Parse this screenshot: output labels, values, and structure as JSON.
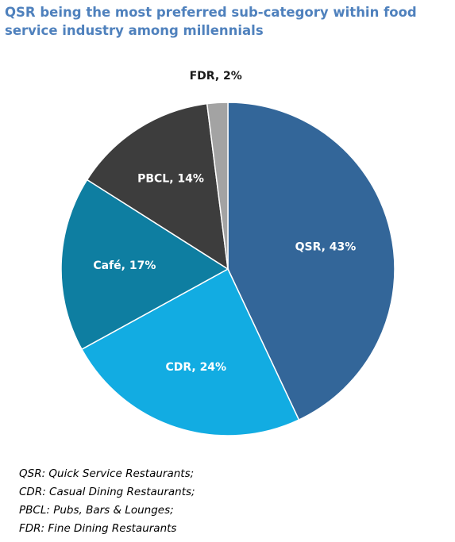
{
  "header": {
    "title": "QSR being the most preferred sub-category within food service industry among millennials"
  },
  "chart_data": {
    "type": "pie",
    "title": "QSR being the most preferred sub-category within food service industry among millennials",
    "slices": [
      {
        "name": "QSR",
        "value": 43,
        "label": "QSR, 43%",
        "color": "#336699",
        "label_color": "#ffffff"
      },
      {
        "name": "CDR",
        "value": 24,
        "label": "CDR, 24%",
        "color": "#12ace2",
        "label_color": "#ffffff"
      },
      {
        "name": "Café",
        "value": 17,
        "label": "Café, 17%",
        "color": "#0e7ea1",
        "label_color": "#ffffff"
      },
      {
        "name": "PBCL",
        "value": 14,
        "label": "PBCL, 14%",
        "color": "#3d3d3d",
        "label_color": "#ffffff"
      },
      {
        "name": "FDR",
        "value": 2,
        "label": "FDR, 2%",
        "color": "#a3a3a3",
        "label_color": "#1a1a1a"
      }
    ],
    "start_angle_deg": 0,
    "direction": "clockwise",
    "legend": "none"
  },
  "footnotes": [
    "QSR: Quick Service Restaurants;",
    "CDR: Casual Dining Restaurants;",
    "PBCL: Pubs, Bars & Lounges;",
    "FDR: Fine Dining Restaurants"
  ]
}
